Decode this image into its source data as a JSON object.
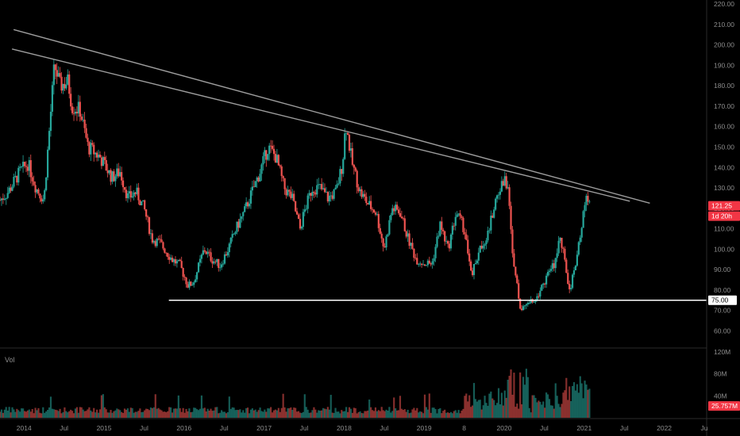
{
  "chart_data": {
    "type": "candlestick",
    "title": "",
    "price_axis": {
      "ticks": [
        "60.00",
        "70.00",
        "80.00",
        "90.00",
        "100.00",
        "110.00",
        "120.00",
        "130.00",
        "140.00",
        "150.00",
        "160.00",
        "170.00",
        "180.00",
        "190.00",
        "200.00",
        "210.00",
        "220.00"
      ],
      "tick_values": [
        60,
        70,
        80,
        90,
        100,
        110,
        120,
        130,
        140,
        150,
        160,
        170,
        180,
        190,
        200,
        210,
        220
      ],
      "ylim": [
        52,
        222
      ]
    },
    "volume_axis": {
      "label": "Vol",
      "ticks": [
        "40M",
        "80M",
        "120M"
      ],
      "tick_values": [
        40,
        80,
        120
      ],
      "ylim": [
        0,
        120
      ]
    },
    "time_axis": {
      "ticks": [
        "2014",
        "Jul",
        "2015",
        "Jul",
        "2016",
        "Jul",
        "2017",
        "Jul",
        "2018",
        "Jul",
        "2019",
        "8",
        "2020",
        "Jul",
        "2021",
        "Jul",
        "2022",
        "Ju"
      ],
      "tick_values": [
        2014.0,
        2014.5,
        2015.0,
        2015.5,
        2016.0,
        2016.5,
        2017.0,
        2017.5,
        2018.0,
        2018.5,
        2019.0,
        2019.5,
        2020.0,
        2020.5,
        2021.0,
        2021.5,
        2022.0,
        2022.5
      ],
      "xlim": [
        2013.7,
        2022.53
      ]
    },
    "last_price": {
      "label": "121.25",
      "value": 121.25,
      "color": "#f23645"
    },
    "countdown": {
      "label": "1d 20h",
      "color": "#f23645"
    },
    "volume_label": {
      "label": "25.757M",
      "value": 25.757,
      "color": "#f23645"
    },
    "support_line": {
      "label": "75.00",
      "value": 75,
      "x_start": 2015.81,
      "x_end": 2022.53,
      "color": "#ffffff"
    },
    "trendlines": [
      {
        "x1": 2013.87,
        "y1": 207.5,
        "x2": 2021.82,
        "y2": 122.5,
        "color": "#9e9e9e"
      },
      {
        "x1": 2013.85,
        "y1": 198.0,
        "x2": 2021.57,
        "y2": 123.5,
        "color": "#9e9e9e"
      }
    ],
    "key_points": [
      [
        2013.7,
        124
      ],
      [
        2013.8,
        128
      ],
      [
        2013.95,
        138
      ],
      [
        2014.05,
        142
      ],
      [
        2014.15,
        130
      ],
      [
        2014.25,
        124
      ],
      [
        2014.3,
        150
      ],
      [
        2014.38,
        190
      ],
      [
        2014.45,
        180
      ],
      [
        2014.55,
        182
      ],
      [
        2014.6,
        170
      ],
      [
        2014.7,
        168
      ],
      [
        2014.8,
        150
      ],
      [
        2014.95,
        145
      ],
      [
        2015.1,
        135
      ],
      [
        2015.2,
        138
      ],
      [
        2015.3,
        125
      ],
      [
        2015.4,
        128
      ],
      [
        2015.5,
        120
      ],
      [
        2015.6,
        105
      ],
      [
        2015.7,
        103
      ],
      [
        2015.85,
        95
      ],
      [
        2015.95,
        92
      ],
      [
        2016.05,
        82
      ],
      [
        2016.12,
        84
      ],
      [
        2016.25,
        100
      ],
      [
        2016.35,
        95
      ],
      [
        2016.45,
        92
      ],
      [
        2016.55,
        100
      ],
      [
        2016.65,
        110
      ],
      [
        2016.75,
        118
      ],
      [
        2016.85,
        128
      ],
      [
        2016.95,
        138
      ],
      [
        2017.05,
        150
      ],
      [
        2017.15,
        145
      ],
      [
        2017.25,
        130
      ],
      [
        2017.35,
        125
      ],
      [
        2017.45,
        110
      ],
      [
        2017.5,
        118
      ],
      [
        2017.6,
        130
      ],
      [
        2017.7,
        130
      ],
      [
        2017.8,
        125
      ],
      [
        2017.9,
        128
      ],
      [
        2017.98,
        142
      ],
      [
        2018.02,
        162
      ],
      [
        2018.1,
        142
      ],
      [
        2018.2,
        128
      ],
      [
        2018.3,
        122
      ],
      [
        2018.4,
        118
      ],
      [
        2018.5,
        100
      ],
      [
        2018.6,
        120
      ],
      [
        2018.7,
        118
      ],
      [
        2018.8,
        105
      ],
      [
        2018.9,
        95
      ],
      [
        2019.0,
        93
      ],
      [
        2019.1,
        93
      ],
      [
        2019.2,
        112
      ],
      [
        2019.3,
        100
      ],
      [
        2019.4,
        118
      ],
      [
        2019.5,
        110
      ],
      [
        2019.6,
        88
      ],
      [
        2019.7,
        100
      ],
      [
        2019.8,
        108
      ],
      [
        2019.9,
        125
      ],
      [
        2020.0,
        134
      ],
      [
        2020.05,
        130
      ],
      [
        2020.1,
        100
      ],
      [
        2020.15,
        85
      ],
      [
        2020.2,
        70
      ],
      [
        2020.3,
        75
      ],
      [
        2020.38,
        73
      ],
      [
        2020.45,
        80
      ],
      [
        2020.55,
        88
      ],
      [
        2020.62,
        92
      ],
      [
        2020.7,
        108
      ],
      [
        2020.75,
        95
      ],
      [
        2020.82,
        80
      ],
      [
        2020.9,
        93
      ],
      [
        2020.98,
        115
      ],
      [
        2021.03,
        128
      ],
      [
        2021.07,
        121
      ]
    ],
    "colors": {
      "up": "#26a69a",
      "down": "#ef5350",
      "background": "#000000",
      "axis_text": "#8c8c8c"
    }
  }
}
